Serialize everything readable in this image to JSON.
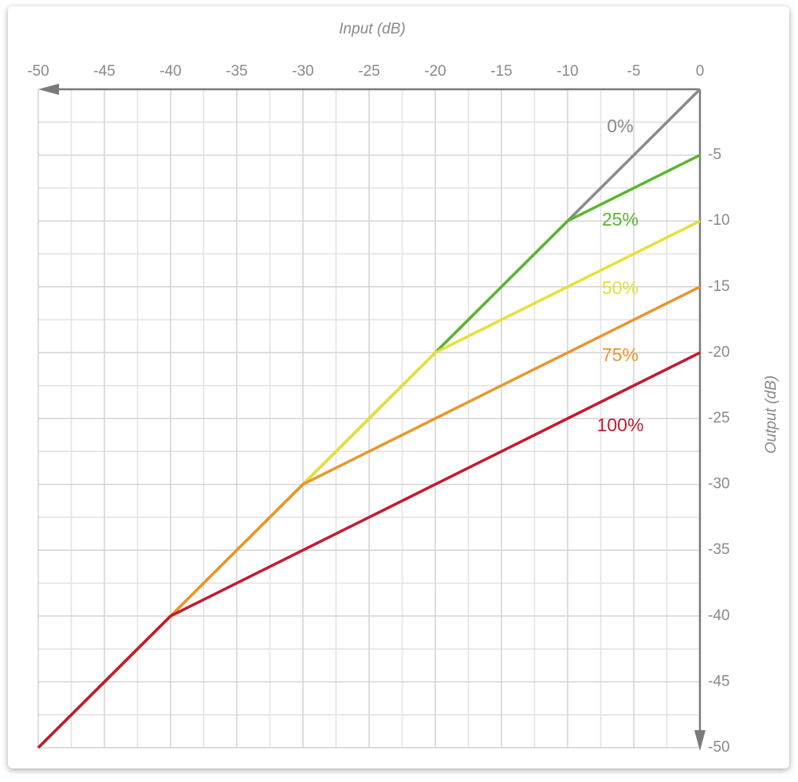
{
  "chart_data": {
    "type": "line",
    "xlabel": "Input (dB)",
    "ylabel": "Output (dB)",
    "x": [
      -50,
      -40,
      -30,
      -20,
      -10,
      0
    ],
    "series": [
      {
        "name": "0%",
        "color": "#8a8a8a",
        "values": [
          -50,
          -40,
          -30,
          -20,
          -10,
          0
        ]
      },
      {
        "name": "25%",
        "color": "#5cb531",
        "values": [
          -50,
          -40,
          -30,
          -20,
          -10,
          -5
        ]
      },
      {
        "name": "50%",
        "color": "#e6e03a",
        "values": [
          -50,
          -40,
          -30,
          -20,
          -15,
          -10
        ]
      },
      {
        "name": "75%",
        "color": "#e8962e",
        "values": [
          -50,
          -40,
          -30,
          -25,
          -20,
          -15
        ]
      },
      {
        "name": "100%",
        "color": "#c41a2c",
        "values": [
          -50,
          -40,
          -35,
          -30,
          -25,
          -20
        ]
      }
    ],
    "xlim": [
      -50,
      0
    ],
    "ylim": [
      -50,
      0
    ],
    "xticks": [
      -50,
      -45,
      -40,
      -35,
      -30,
      -25,
      -20,
      -15,
      -10,
      -5,
      0
    ],
    "yticks": [
      -5,
      -10,
      -15,
      -20,
      -25,
      -30,
      -35,
      -40,
      -45,
      -50
    ],
    "grid": true
  }
}
